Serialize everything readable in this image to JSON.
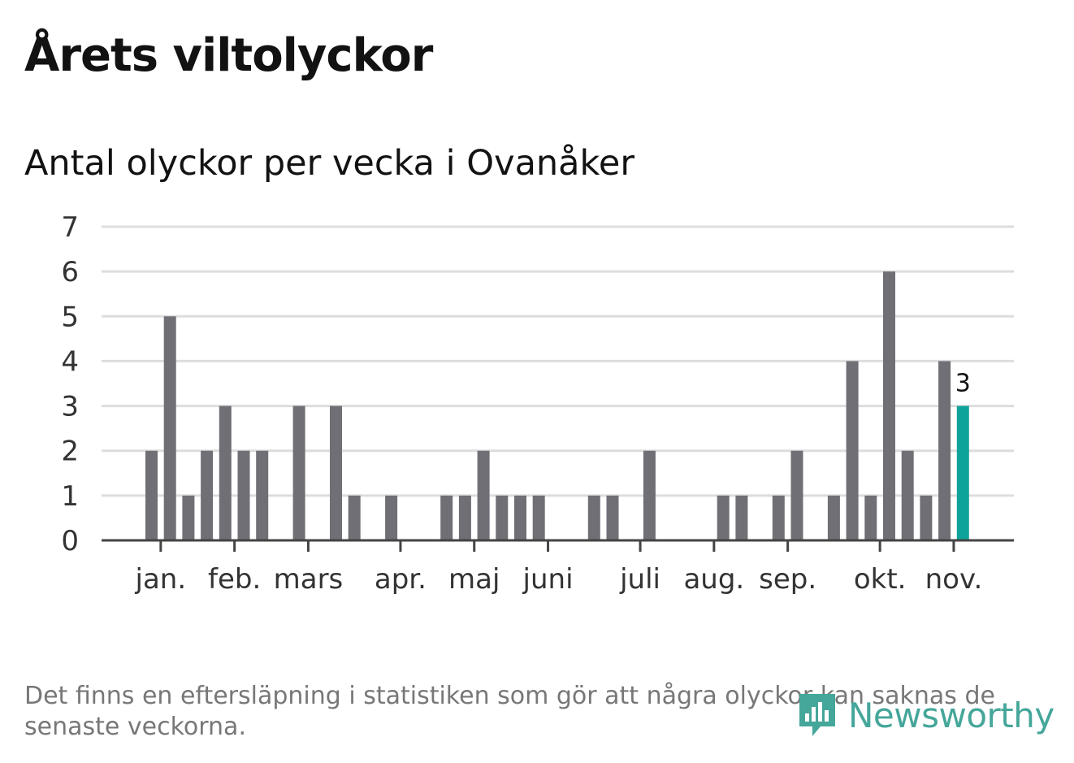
{
  "title": "Årets viltolyckor",
  "subtitle": "Antal olyckor per vecka i Ovanåker",
  "note": "Det finns en eftersläpning i statistiken som gör att några olyckor kan saknas de senaste veckorna.",
  "brand": {
    "name": "Newsworthy",
    "color": "#45a69a",
    "icon": "newsworthy-logo-icon"
  },
  "colors": {
    "bar": "#706f75",
    "highlight": "#0da39a",
    "grid": "#dddddd",
    "axis": "#444444"
  },
  "chart_data": {
    "type": "bar",
    "title": "Antal olyckor per vecka i Ovanåker",
    "xlabel": "",
    "ylabel": "",
    "ylim": [
      0,
      7
    ],
    "yticks": [
      "0",
      "1",
      "2",
      "3",
      "4",
      "5",
      "6",
      "7"
    ],
    "grid": true,
    "weeks": [
      1,
      2,
      3,
      4,
      5,
      6,
      7,
      8,
      9,
      10,
      11,
      12,
      13,
      14,
      15,
      16,
      17,
      18,
      19,
      20,
      21,
      22,
      23,
      24,
      25,
      26,
      27,
      28,
      29,
      30,
      31,
      32,
      33,
      34,
      35,
      36,
      37,
      38,
      39,
      40,
      41,
      42,
      43,
      44,
      45,
      46
    ],
    "values": [
      2,
      5,
      1,
      2,
      3,
      2,
      2,
      0,
      3,
      0,
      3,
      1,
      0,
      1,
      0,
      0,
      1,
      1,
      2,
      1,
      1,
      1,
      0,
      0,
      1,
      1,
      0,
      2,
      0,
      0,
      0,
      1,
      1,
      0,
      1,
      2,
      0,
      1,
      4,
      1,
      6,
      2,
      1,
      4,
      3,
      0
    ],
    "highlight_index": 44,
    "highlight_label": "3",
    "month_ticks": [
      {
        "label": "jan.",
        "week": 1.5
      },
      {
        "label": "feb.",
        "week": 5.5
      },
      {
        "label": "mars",
        "week": 9.5
      },
      {
        "label": "apr.",
        "week": 14.5
      },
      {
        "label": "maj",
        "week": 18.5
      },
      {
        "label": "juni",
        "week": 22.5
      },
      {
        "label": "juli",
        "week": 27.5
      },
      {
        "label": "aug.",
        "week": 31.5
      },
      {
        "label": "sep.",
        "week": 35.5
      },
      {
        "label": "okt.",
        "week": 40.5
      },
      {
        "label": "nov.",
        "week": 44.5
      }
    ]
  }
}
